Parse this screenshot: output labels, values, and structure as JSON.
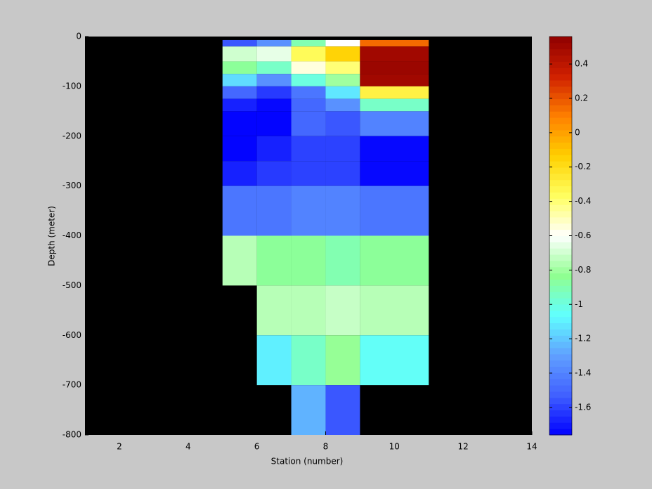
{
  "chart_data": {
    "type": "heatmap",
    "xlabel": "Station (number)",
    "ylabel": "Depth (meter)",
    "x_edges": [
      5,
      6,
      7,
      8,
      9,
      11
    ],
    "y_edges": [
      -7,
      -20,
      -50,
      -75,
      -100,
      -125,
      -150,
      -200,
      -250,
      -300,
      -400,
      -500,
      -600,
      -700,
      -800
    ],
    "values": [
      [
        -1.55,
        -1.35,
        -0.9,
        -0.6,
        0.15
      ],
      [
        -0.7,
        -0.65,
        -0.35,
        -0.15,
        0.5
      ],
      [
        -0.85,
        -0.95,
        -0.55,
        -0.4,
        0.52
      ],
      [
        -1.15,
        -1.35,
        -1.0,
        -0.8,
        0.5
      ],
      [
        -1.5,
        -1.62,
        -1.45,
        -1.12,
        -0.3
      ],
      [
        -1.68,
        -1.74,
        -1.5,
        -1.35,
        -0.95
      ],
      [
        -1.75,
        -1.75,
        -1.5,
        -1.55,
        -1.4
      ],
      [
        -1.75,
        -1.68,
        -1.6,
        -1.6,
        -1.74
      ],
      [
        -1.68,
        -1.62,
        -1.6,
        -1.6,
        -1.74
      ],
      [
        -1.45,
        -1.45,
        -1.4,
        -1.4,
        -1.45
      ],
      [
        -0.75,
        -0.85,
        -0.85,
        -0.9,
        -0.85
      ],
      [
        null,
        -0.75,
        -0.75,
        -0.72,
        -0.75
      ],
      [
        null,
        -1.1,
        -0.95,
        -0.82,
        -1.05
      ],
      [
        null,
        null,
        -1.25,
        -1.55,
        null
      ]
    ],
    "xlim": [
      1,
      14
    ],
    "xticks": [
      2,
      4,
      6,
      8,
      10,
      12,
      14
    ],
    "ylim": [
      -800,
      0
    ],
    "yticks": [
      0,
      -100,
      -200,
      -300,
      -400,
      -500,
      -600,
      -700,
      -800
    ],
    "clim": [
      -1.76,
      0.56
    ],
    "cticks": [
      -1.6,
      -1.4,
      -1.2,
      -1,
      -0.8,
      -0.6,
      -0.4,
      -0.2,
      0,
      0.2,
      0.4
    ],
    "colormap": [
      "#0000ff",
      "#4060ff",
      "#60a0ff",
      "#60ffff",
      "#90ff90",
      "#ffffff",
      "#ffff60",
      "#ffd000",
      "#ff8000",
      "#d02000",
      "#900000"
    ],
    "background": "#000000"
  }
}
